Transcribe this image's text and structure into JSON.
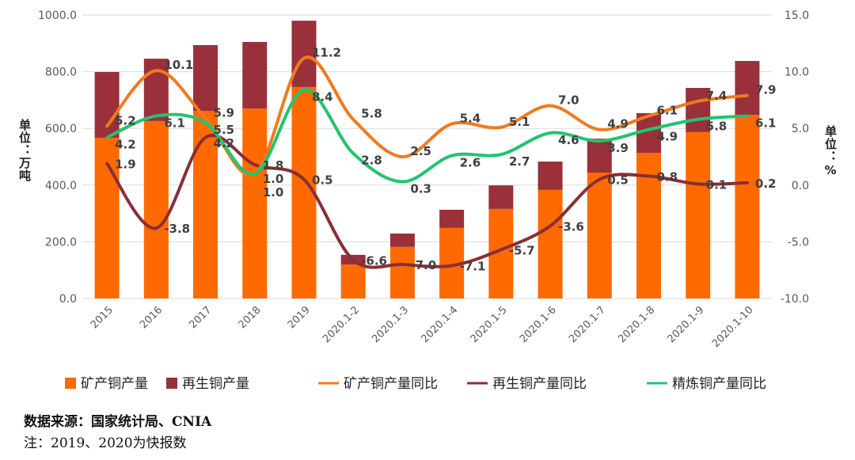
{
  "chart_data": {
    "type": "bar+line",
    "categories": [
      "2015",
      "2016",
      "2017",
      "2018",
      "2019",
      "2020.1-2",
      "2020.1-3",
      "2020.1-4",
      "2020.1-5",
      "2020.1-6",
      "2020.1-7",
      "2020.1-8",
      "2020.1-9",
      "2020.1-10"
    ],
    "left_axis": {
      "label": "单位：万吨",
      "ylim": [
        0,
        1000
      ],
      "ticks": [
        "0.0",
        "200.0",
        "400.0",
        "600.0",
        "800.0",
        "1000.0"
      ]
    },
    "right_axis": {
      "label": "单位：%",
      "ylim": [
        -10,
        15
      ],
      "ticks": [
        "-10.0",
        "-5.0",
        "0.0",
        "5.0",
        "10.0",
        "15.0"
      ]
    },
    "bar_series": [
      {
        "name": "矿产铜产量",
        "color": "#FF6A00",
        "values": [
          567,
          626,
          662,
          670,
          746,
          120,
          182,
          249,
          316,
          383,
          444,
          514,
          587,
          648
        ]
      },
      {
        "name": "再生铜产量",
        "color": "#99303A",
        "values": [
          232,
          220,
          232,
          235,
          234,
          34,
          47,
          64,
          83,
          100,
          120,
          140,
          156,
          190
        ]
      }
    ],
    "line_series": [
      {
        "name": "矿产铜产量同比",
        "color": "#F07A20",
        "values": [
          5.2,
          10.1,
          5.9,
          1.0,
          11.2,
          5.8,
          2.5,
          5.4,
          5.1,
          7.0,
          4.9,
          6.1,
          7.4,
          7.9
        ]
      },
      {
        "name": "再生铜产量同比",
        "color": "#8B2E35",
        "values": [
          1.9,
          -3.8,
          4.2,
          1.8,
          0.5,
          -6.6,
          -7.0,
          -7.1,
          -5.7,
          -3.6,
          0.5,
          0.8,
          0.1,
          0.2
        ]
      },
      {
        "name": "精炼铜产量同比",
        "color": "#22C46E",
        "values": [
          4.2,
          6.1,
          5.5,
          1.0,
          8.4,
          2.8,
          0.3,
          2.6,
          2.7,
          4.6,
          3.9,
          4.9,
          5.8,
          6.1
        ]
      }
    ],
    "grid": true,
    "legend": "bottom"
  },
  "source": "数据来源：国家统计局、CNIA",
  "note": "注：2019、2020为快报数"
}
